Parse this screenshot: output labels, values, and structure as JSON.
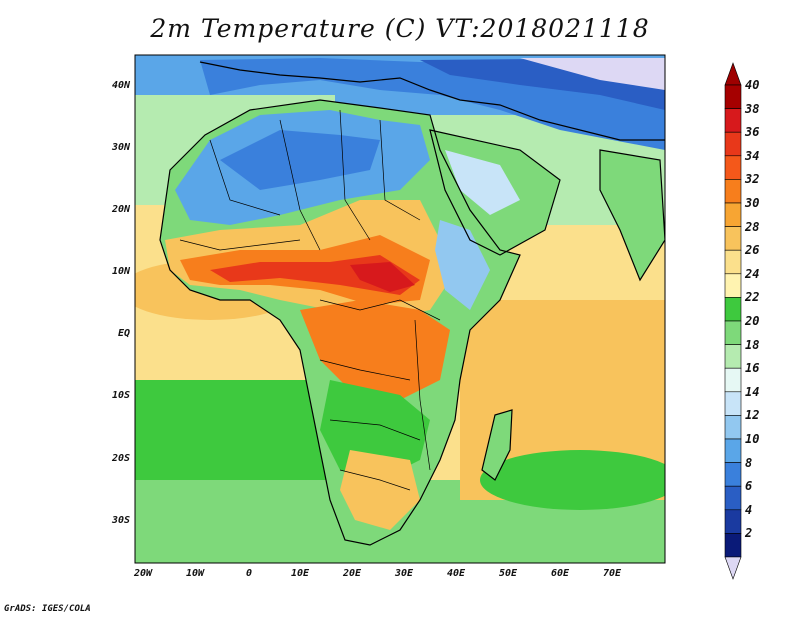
{
  "title": "2m Temperature (C) VT:2018021118",
  "credit": "GrADS: IGES/COLA",
  "x_ticks": [
    "20W",
    "10W",
    "0",
    "10E",
    "20E",
    "30E",
    "40E",
    "50E",
    "60E",
    "70E"
  ],
  "y_ticks": [
    "40N",
    "30N",
    "20N",
    "10N",
    "EQ",
    "10S",
    "20S",
    "30S"
  ],
  "colorbar": {
    "labels": [
      "40",
      "38",
      "36",
      "34",
      "32",
      "30",
      "28",
      "26",
      "24",
      "22",
      "20",
      "18",
      "16",
      "14",
      "12",
      "10",
      "8",
      "6",
      "4",
      "2"
    ],
    "colors": [
      "#a50000",
      "#d7191c",
      "#e8381a",
      "#f4581a",
      "#f77e1c",
      "#f7a533",
      "#f8c35c",
      "#fbe08c",
      "#fff3b0",
      "#3ec93e",
      "#7ed97a",
      "#b5ebb0",
      "#e6f8f4",
      "#c8e4f8",
      "#92c8f0",
      "#5aa6e8",
      "#3a80dc",
      "#2a5ec4",
      "#1a3aa0",
      "#0a1a78"
    ],
    "top_arrow_color": "#9e0000",
    "bottom_arrow_color": "#ddd8f4"
  }
}
